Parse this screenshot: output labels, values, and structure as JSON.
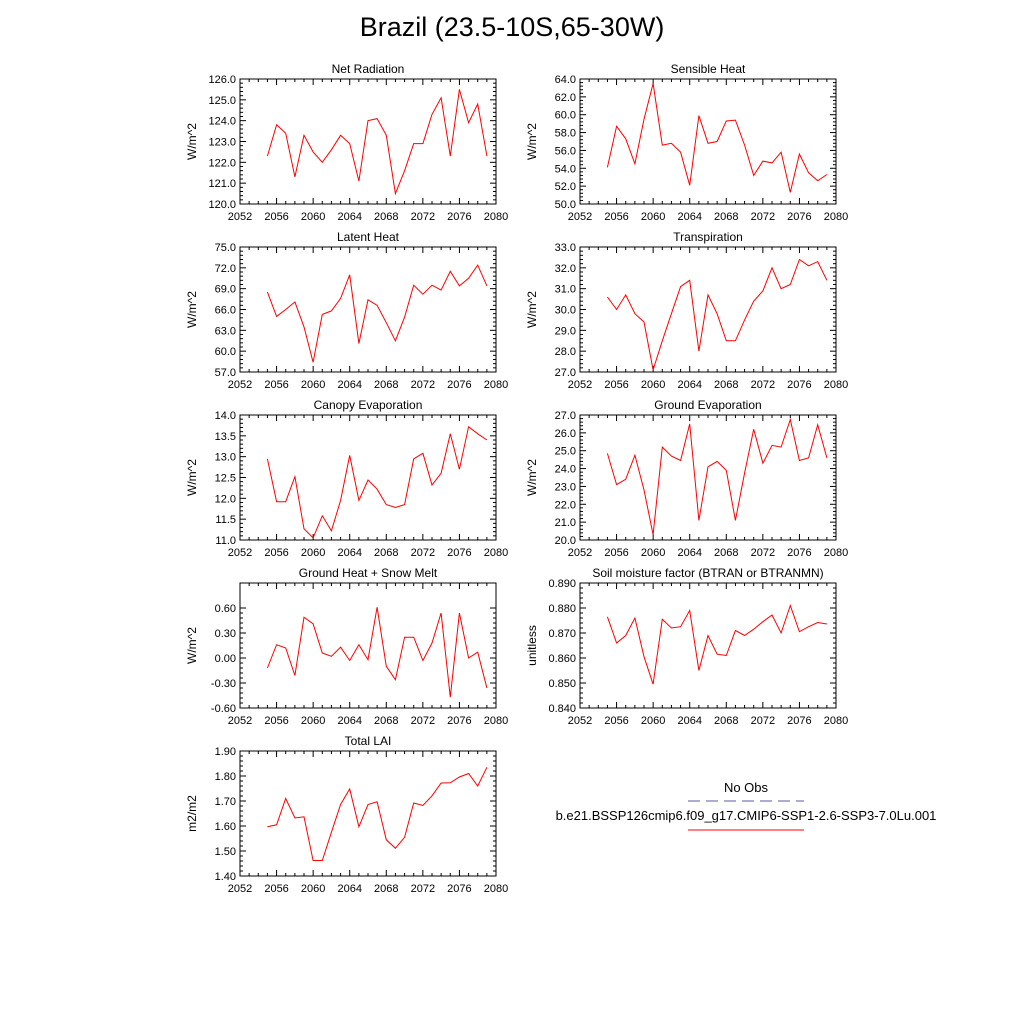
{
  "title": "Brazil (23.5-10S,65-30W)",
  "colors": {
    "model": "#ff0000",
    "obs": "#5a5aa8",
    "axis": "#000000"
  },
  "legend": {
    "obs_label": "No Obs",
    "model_label": "b.e21.BSSP126cmip6.f09_g17.CMIP6-SSP1-2.6-SSP3-7.0Lu.001"
  },
  "chart_data": [
    {
      "type": "line",
      "title": "Net Radiation",
      "ylabel": "W/m^2",
      "xlim": [
        2052,
        2080
      ],
      "ylim": [
        120.0,
        126.0
      ],
      "xticks": [
        2052,
        2056,
        2060,
        2064,
        2068,
        2072,
        2076,
        2080
      ],
      "xtick_labels": [
        "2052",
        "2056",
        "2060",
        "2064",
        "2068",
        "2072",
        "2076",
        "2080"
      ],
      "yticks": [
        120.0,
        121.0,
        122.0,
        123.0,
        124.0,
        125.0,
        126.0
      ],
      "ytick_labels": [
        "120.0",
        "121.0",
        "122.0",
        "123.0",
        "124.0",
        "125.0",
        "126.0"
      ],
      "x": [
        2055,
        2056,
        2057,
        2058,
        2059,
        2060,
        2061,
        2062,
        2063,
        2064,
        2065,
        2066,
        2067,
        2068,
        2069,
        2070,
        2071,
        2072,
        2073,
        2074,
        2075,
        2076,
        2077,
        2078,
        2079
      ],
      "series": [
        {
          "values": [
            122.3,
            123.8,
            123.4,
            121.3,
            123.3,
            122.5,
            122.0,
            122.6,
            123.3,
            122.9,
            121.1,
            124.0,
            124.1,
            123.3,
            120.5,
            121.6,
            122.9,
            122.9,
            124.3,
            125.1,
            122.3,
            125.5,
            123.9,
            124.8,
            122.3
          ]
        }
      ]
    },
    {
      "type": "line",
      "title": "Sensible Heat",
      "ylabel": "W/m^2",
      "xlim": [
        2052,
        2080
      ],
      "ylim": [
        50.0,
        64.0
      ],
      "xticks": [
        2052,
        2056,
        2060,
        2064,
        2068,
        2072,
        2076,
        2080
      ],
      "xtick_labels": [
        "2052",
        "2056",
        "2060",
        "2064",
        "2068",
        "2072",
        "2076",
        "2080"
      ],
      "yticks": [
        50.0,
        52.0,
        54.0,
        56.0,
        58.0,
        60.0,
        62.0,
        64.0
      ],
      "ytick_labels": [
        "50.0",
        "52.0",
        "54.0",
        "56.0",
        "58.0",
        "60.0",
        "62.0",
        "64.0"
      ],
      "x": [
        2055,
        2056,
        2057,
        2058,
        2059,
        2060,
        2061,
        2062,
        2063,
        2064,
        2065,
        2066,
        2067,
        2068,
        2069,
        2070,
        2071,
        2072,
        2073,
        2074,
        2075,
        2076,
        2077,
        2078,
        2079
      ],
      "series": [
        {
          "values": [
            54.1,
            58.7,
            57.3,
            54.5,
            59.5,
            63.5,
            56.6,
            56.8,
            55.8,
            52.1,
            59.9,
            56.8,
            57.0,
            59.3,
            59.4,
            56.6,
            53.2,
            54.8,
            54.6,
            55.8,
            51.3,
            55.6,
            53.5,
            52.6,
            53.3
          ]
        }
      ]
    },
    {
      "type": "line",
      "title": "Latent Heat",
      "ylabel": "W/m^2",
      "xlim": [
        2052,
        2080
      ],
      "ylim": [
        57.0,
        75.0
      ],
      "xticks": [
        2052,
        2056,
        2060,
        2064,
        2068,
        2072,
        2076,
        2080
      ],
      "xtick_labels": [
        "2052",
        "2056",
        "2060",
        "2064",
        "2068",
        "2072",
        "2076",
        "2080"
      ],
      "yticks": [
        57.0,
        60.0,
        63.0,
        66.0,
        69.0,
        72.0,
        75.0
      ],
      "ytick_labels": [
        "57.0",
        "60.0",
        "63.0",
        "66.0",
        "69.0",
        "72.0",
        "75.0"
      ],
      "x": [
        2055,
        2056,
        2057,
        2058,
        2059,
        2060,
        2061,
        2062,
        2063,
        2064,
        2065,
        2066,
        2067,
        2068,
        2069,
        2070,
        2071,
        2072,
        2073,
        2074,
        2075,
        2076,
        2077,
        2078,
        2079
      ],
      "series": [
        {
          "values": [
            68.5,
            65.0,
            66.0,
            67.1,
            63.5,
            58.4,
            65.3,
            65.8,
            67.6,
            71.0,
            61.1,
            67.4,
            66.6,
            64.1,
            61.5,
            64.9,
            69.5,
            68.2,
            69.5,
            68.8,
            71.5,
            69.4,
            70.5,
            72.4,
            69.4
          ]
        }
      ]
    },
    {
      "type": "line",
      "title": "Transpiration",
      "ylabel": "W/m^2",
      "xlim": [
        2052,
        2080
      ],
      "ylim": [
        27.0,
        33.0
      ],
      "xticks": [
        2052,
        2056,
        2060,
        2064,
        2068,
        2072,
        2076,
        2080
      ],
      "xtick_labels": [
        "2052",
        "2056",
        "2060",
        "2064",
        "2068",
        "2072",
        "2076",
        "2080"
      ],
      "yticks": [
        27.0,
        28.0,
        29.0,
        30.0,
        31.0,
        32.0,
        33.0
      ],
      "ytick_labels": [
        "27.0",
        "28.0",
        "29.0",
        "30.0",
        "31.0",
        "32.0",
        "33.0"
      ],
      "x": [
        2055,
        2056,
        2057,
        2058,
        2059,
        2060,
        2061,
        2062,
        2063,
        2064,
        2065,
        2066,
        2067,
        2068,
        2069,
        2070,
        2071,
        2072,
        2073,
        2074,
        2075,
        2076,
        2077,
        2078,
        2079
      ],
      "series": [
        {
          "values": [
            30.6,
            30.0,
            30.7,
            29.8,
            29.4,
            27.1,
            28.5,
            29.8,
            31.1,
            31.4,
            28.0,
            30.7,
            29.8,
            28.5,
            28.5,
            29.5,
            30.4,
            30.9,
            32.0,
            31.0,
            31.2,
            32.4,
            32.1,
            32.3,
            31.4
          ]
        }
      ]
    },
    {
      "type": "line",
      "title": "Canopy Evaporation",
      "ylabel": "W/m^2",
      "xlim": [
        2052,
        2080
      ],
      "ylim": [
        11.0,
        14.0
      ],
      "xticks": [
        2052,
        2056,
        2060,
        2064,
        2068,
        2072,
        2076,
        2080
      ],
      "xtick_labels": [
        "2052",
        "2056",
        "2060",
        "2064",
        "2068",
        "2072",
        "2076",
        "2080"
      ],
      "yticks": [
        11.0,
        11.5,
        12.0,
        12.5,
        13.0,
        13.5,
        14.0
      ],
      "ytick_labels": [
        "11.0",
        "11.5",
        "12.0",
        "12.5",
        "13.0",
        "13.5",
        "14.0"
      ],
      "x": [
        2055,
        2056,
        2057,
        2058,
        2059,
        2060,
        2061,
        2062,
        2063,
        2064,
        2065,
        2066,
        2067,
        2068,
        2069,
        2070,
        2071,
        2072,
        2073,
        2074,
        2075,
        2076,
        2077,
        2078,
        2079
      ],
      "series": [
        {
          "values": [
            12.95,
            11.92,
            11.92,
            12.52,
            11.27,
            11.05,
            11.58,
            11.22,
            11.95,
            13.03,
            11.95,
            12.44,
            12.22,
            11.85,
            11.78,
            11.85,
            12.95,
            13.08,
            12.32,
            12.6,
            13.55,
            12.7,
            13.72,
            13.55,
            13.4
          ]
        }
      ]
    },
    {
      "type": "line",
      "title": "Ground Evaporation",
      "ylabel": "W/m^2",
      "xlim": [
        2052,
        2080
      ],
      "ylim": [
        20.0,
        27.0
      ],
      "xticks": [
        2052,
        2056,
        2060,
        2064,
        2068,
        2072,
        2076,
        2080
      ],
      "xtick_labels": [
        "2052",
        "2056",
        "2060",
        "2064",
        "2068",
        "2072",
        "2076",
        "2080"
      ],
      "yticks": [
        20.0,
        21.0,
        22.0,
        23.0,
        24.0,
        25.0,
        26.0,
        27.0
      ],
      "ytick_labels": [
        "20.0",
        "21.0",
        "22.0",
        "23.0",
        "24.0",
        "25.0",
        "26.0",
        "27.0"
      ],
      "x": [
        2055,
        2056,
        2057,
        2058,
        2059,
        2060,
        2061,
        2062,
        2063,
        2064,
        2065,
        2066,
        2067,
        2068,
        2069,
        2070,
        2071,
        2072,
        2073,
        2074,
        2075,
        2076,
        2077,
        2078,
        2079
      ],
      "series": [
        {
          "values": [
            24.85,
            23.1,
            23.4,
            24.75,
            22.8,
            20.3,
            25.2,
            24.7,
            24.45,
            26.5,
            21.1,
            24.1,
            24.4,
            23.9,
            21.1,
            23.75,
            26.2,
            24.3,
            25.3,
            25.2,
            26.75,
            24.45,
            24.6,
            26.45,
            24.6
          ]
        }
      ]
    },
    {
      "type": "line",
      "title": "Ground Heat + Snow Melt",
      "ylabel": "W/m^2",
      "xlim": [
        2052,
        2080
      ],
      "ylim": [
        -0.6,
        0.9
      ],
      "xticks": [
        2052,
        2056,
        2060,
        2064,
        2068,
        2072,
        2076,
        2080
      ],
      "xtick_labels": [
        "2052",
        "2056",
        "2060",
        "2064",
        "2068",
        "2072",
        "2076",
        "2080"
      ],
      "yticks": [
        -0.6,
        -0.3,
        0.0,
        0.3,
        0.6
      ],
      "ytick_labels": [
        "-0.60",
        "-0.30",
        "0.00",
        "0.30",
        "0.60"
      ],
      "x": [
        2055,
        2056,
        2057,
        2058,
        2059,
        2060,
        2061,
        2062,
        2063,
        2064,
        2065,
        2066,
        2067,
        2068,
        2069,
        2070,
        2071,
        2072,
        2073,
        2074,
        2075,
        2076,
        2077,
        2078,
        2079
      ],
      "series": [
        {
          "values": [
            -0.12,
            0.16,
            0.12,
            -0.21,
            0.49,
            0.41,
            0.06,
            0.02,
            0.13,
            -0.03,
            0.16,
            -0.02,
            0.61,
            -0.1,
            -0.26,
            0.25,
            0.25,
            -0.03,
            0.18,
            0.54,
            -0.47,
            0.54,
            0.0,
            0.07,
            -0.36
          ]
        }
      ]
    },
    {
      "type": "line",
      "title": "Soil moisture factor (BTRAN or BTRANMN)",
      "ylabel": "unitless",
      "xlim": [
        2052,
        2080
      ],
      "ylim": [
        0.84,
        0.89
      ],
      "xticks": [
        2052,
        2056,
        2060,
        2064,
        2068,
        2072,
        2076,
        2080
      ],
      "xtick_labels": [
        "2052",
        "2056",
        "2060",
        "2064",
        "2068",
        "2072",
        "2076",
        "2080"
      ],
      "yticks": [
        0.84,
        0.85,
        0.86,
        0.87,
        0.88,
        0.89
      ],
      "ytick_labels": [
        "0.840",
        "0.850",
        "0.860",
        "0.870",
        "0.880",
        "0.890"
      ],
      "x": [
        2055,
        2056,
        2057,
        2058,
        2059,
        2060,
        2061,
        2062,
        2063,
        2064,
        2065,
        2066,
        2067,
        2068,
        2069,
        2070,
        2071,
        2072,
        2073,
        2074,
        2075,
        2076,
        2077,
        2078,
        2079
      ],
      "series": [
        {
          "values": [
            0.8765,
            0.866,
            0.869,
            0.876,
            0.8605,
            0.8495,
            0.8755,
            0.872,
            0.8725,
            0.879,
            0.855,
            0.869,
            0.8615,
            0.861,
            0.871,
            0.869,
            0.8715,
            0.8745,
            0.8772,
            0.87,
            0.881,
            0.8705,
            0.8725,
            0.8742,
            0.8736
          ]
        }
      ]
    },
    {
      "type": "line",
      "title": "Total LAI",
      "ylabel": "m2/m2",
      "xlim": [
        2052,
        2080
      ],
      "ylim": [
        1.4,
        1.9
      ],
      "xticks": [
        2052,
        2056,
        2060,
        2064,
        2068,
        2072,
        2076,
        2080
      ],
      "xtick_labels": [
        "2052",
        "2056",
        "2060",
        "2064",
        "2068",
        "2072",
        "2076",
        "2080"
      ],
      "yticks": [
        1.4,
        1.5,
        1.6,
        1.7,
        1.8,
        1.9
      ],
      "ytick_labels": [
        "1.40",
        "1.50",
        "1.60",
        "1.70",
        "1.80",
        "1.90"
      ],
      "x": [
        2055,
        2056,
        2057,
        2058,
        2059,
        2060,
        2061,
        2062,
        2063,
        2064,
        2065,
        2066,
        2067,
        2068,
        2069,
        2070,
        2071,
        2072,
        2073,
        2074,
        2075,
        2076,
        2077,
        2078,
        2079
      ],
      "series": [
        {
          "values": [
            1.597,
            1.605,
            1.71,
            1.632,
            1.637,
            1.462,
            1.462,
            1.575,
            1.686,
            1.748,
            1.597,
            1.686,
            1.697,
            1.545,
            1.511,
            1.555,
            1.692,
            1.682,
            1.721,
            1.772,
            1.773,
            1.796,
            1.81,
            1.76,
            1.835
          ]
        }
      ]
    }
  ]
}
